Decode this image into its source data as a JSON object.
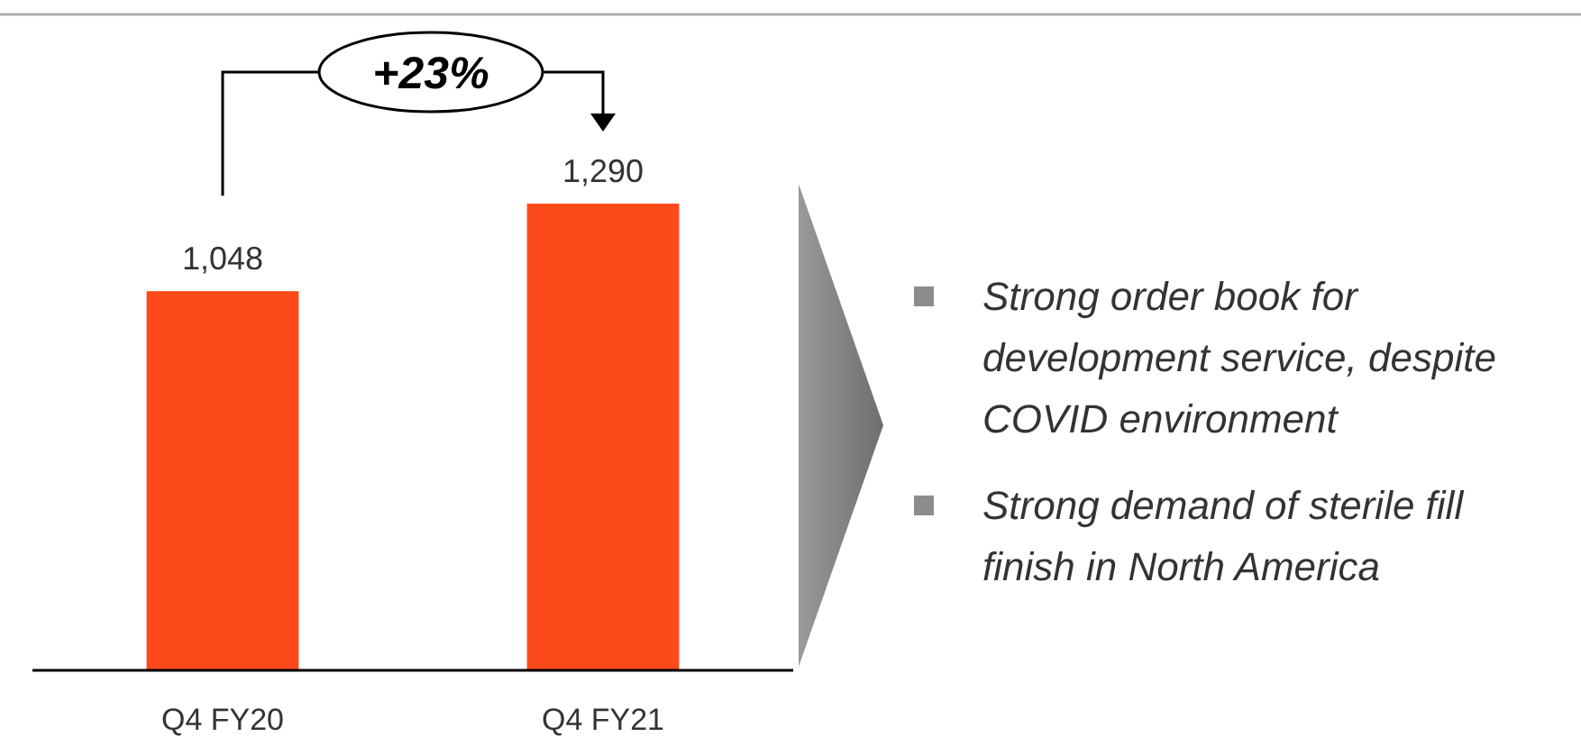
{
  "chart_data": {
    "type": "bar",
    "categories": [
      "Q4 FY20",
      "Q4 FY21"
    ],
    "values": [
      1048,
      1290
    ],
    "color": "#fc4a1a",
    "value_labels": [
      "1,048",
      "1,290"
    ],
    "annotations": [
      "+23%",
      "Strong order book for development service, despite COVID environment",
      "Strong demand of sterile fill finish in North America"
    ]
  }
}
